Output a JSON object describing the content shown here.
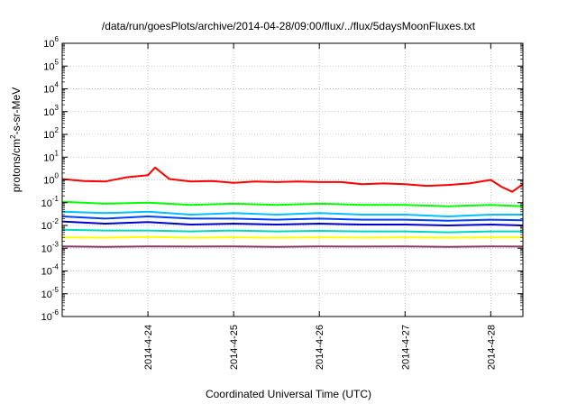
{
  "chart_data": {
    "type": "line",
    "title": "/data/run/goesPlots/archive/2014-04-28/09:00/flux/../flux/5daysMoonFluxes.txt",
    "xlabel": "Coordinated Universal Time (UTC)",
    "ylabel": "protons/cm^2-s-sr-MeV",
    "yscale": "log",
    "ylim": [
      1e-06,
      1000000.0
    ],
    "y_ticks": [
      {
        "mant": "10",
        "exp": "-6"
      },
      {
        "mant": "10",
        "exp": "-5"
      },
      {
        "mant": "10",
        "exp": "-4"
      },
      {
        "mant": "10",
        "exp": "-3"
      },
      {
        "mant": "10",
        "exp": "-2"
      },
      {
        "mant": "10",
        "exp": "-1"
      },
      {
        "mant": "10",
        "exp": "0"
      },
      {
        "mant": "10",
        "exp": "1"
      },
      {
        "mant": "10",
        "exp": "2"
      },
      {
        "mant": "10",
        "exp": "3"
      },
      {
        "mant": "10",
        "exp": "4"
      },
      {
        "mant": "10",
        "exp": "5"
      },
      {
        "mant": "10",
        "exp": "6"
      }
    ],
    "xlim": [
      "2014-04-23 00:00",
      "2014-04-28 09:00"
    ],
    "x_ticks": [
      "2014-4-24",
      "2014-4-25",
      "2014-4-26",
      "2014-4-27",
      "2014-4-28"
    ],
    "grid": true,
    "series": [
      {
        "color": "#ff0000",
        "x": [
          "2014-04-23 00:00",
          "2014-04-23 06:00",
          "2014-04-23 12:00",
          "2014-04-23 18:00",
          "2014-04-24 00:00",
          "2014-04-24 02:00",
          "2014-04-24 06:00",
          "2014-04-24 12:00",
          "2014-04-24 18:00",
          "2014-04-25 00:00",
          "2014-04-25 06:00",
          "2014-04-25 12:00",
          "2014-04-25 18:00",
          "2014-04-26 00:00",
          "2014-04-26 06:00",
          "2014-04-26 12:00",
          "2014-04-26 18:00",
          "2014-04-27 00:00",
          "2014-04-27 06:00",
          "2014-04-27 12:00",
          "2014-04-27 18:00",
          "2014-04-28 00:00",
          "2014-04-28 03:00",
          "2014-04-28 06:00",
          "2014-04-28 09:00"
        ],
        "y": [
          1.1,
          0.9,
          0.85,
          1.3,
          1.6,
          3.5,
          1.1,
          0.85,
          0.9,
          0.75,
          0.85,
          0.8,
          0.85,
          0.8,
          0.8,
          0.65,
          0.7,
          0.65,
          0.55,
          0.6,
          0.7,
          1.0,
          0.5,
          0.3,
          0.65
        ]
      },
      {
        "color": "#00ff00",
        "x": [
          "2014-04-23 00:00",
          "2014-04-23 12:00",
          "2014-04-24 00:00",
          "2014-04-24 12:00",
          "2014-04-25 00:00",
          "2014-04-25 12:00",
          "2014-04-26 00:00",
          "2014-04-26 12:00",
          "2014-04-27 00:00",
          "2014-04-27 12:00",
          "2014-04-28 00:00",
          "2014-04-28 09:00"
        ],
        "y": [
          0.11,
          0.09,
          0.1,
          0.08,
          0.09,
          0.08,
          0.09,
          0.08,
          0.08,
          0.07,
          0.08,
          0.07
        ]
      },
      {
        "color": "#00c0ff",
        "x": [
          "2014-04-23 00:00",
          "2014-04-23 12:00",
          "2014-04-24 00:00",
          "2014-04-24 12:00",
          "2014-04-25 00:00",
          "2014-04-25 12:00",
          "2014-04-26 00:00",
          "2014-04-26 12:00",
          "2014-04-27 00:00",
          "2014-04-27 12:00",
          "2014-04-28 00:00",
          "2014-04-28 09:00"
        ],
        "y": [
          0.04,
          0.035,
          0.04,
          0.03,
          0.035,
          0.03,
          0.035,
          0.03,
          0.03,
          0.025,
          0.03,
          0.03
        ]
      },
      {
        "color": "#0040ff",
        "x": [
          "2014-04-23 00:00",
          "2014-04-23 12:00",
          "2014-04-24 00:00",
          "2014-04-24 12:00",
          "2014-04-25 00:00",
          "2014-04-25 12:00",
          "2014-04-26 00:00",
          "2014-04-26 12:00",
          "2014-04-27 00:00",
          "2014-04-27 12:00",
          "2014-04-28 00:00",
          "2014-04-28 09:00"
        ],
        "y": [
          0.025,
          0.02,
          0.025,
          0.02,
          0.02,
          0.018,
          0.02,
          0.018,
          0.018,
          0.016,
          0.018,
          0.017
        ]
      },
      {
        "color": "#0000cc",
        "x": [
          "2014-04-23 00:00",
          "2014-04-23 12:00",
          "2014-04-24 00:00",
          "2014-04-24 12:00",
          "2014-04-25 00:00",
          "2014-04-25 12:00",
          "2014-04-26 00:00",
          "2014-04-26 12:00",
          "2014-04-27 00:00",
          "2014-04-27 12:00",
          "2014-04-28 00:00",
          "2014-04-28 09:00"
        ],
        "y": [
          0.015,
          0.012,
          0.014,
          0.011,
          0.012,
          0.011,
          0.012,
          0.011,
          0.011,
          0.01,
          0.011,
          0.01
        ]
      },
      {
        "color": "#00d8c0",
        "x": [
          "2014-04-23 00:00",
          "2014-04-23 12:00",
          "2014-04-24 00:00",
          "2014-04-24 12:00",
          "2014-04-25 00:00",
          "2014-04-25 12:00",
          "2014-04-26 00:00",
          "2014-04-26 12:00",
          "2014-04-27 00:00",
          "2014-04-27 12:00",
          "2014-04-28 00:00",
          "2014-04-28 09:00"
        ],
        "y": [
          0.0065,
          0.006,
          0.006,
          0.0055,
          0.006,
          0.0055,
          0.0058,
          0.0055,
          0.0055,
          0.005,
          0.0055,
          0.0055
        ]
      },
      {
        "color": "#ffff00",
        "x": [
          "2014-04-23 00:00",
          "2014-04-23 12:00",
          "2014-04-24 00:00",
          "2014-04-24 12:00",
          "2014-04-25 00:00",
          "2014-04-25 12:00",
          "2014-04-26 00:00",
          "2014-04-26 12:00",
          "2014-04-27 00:00",
          "2014-04-27 12:00",
          "2014-04-28 00:00",
          "2014-04-28 09:00"
        ],
        "y": [
          0.003,
          0.0029,
          0.0031,
          0.0029,
          0.003,
          0.0029,
          0.003,
          0.0029,
          0.003,
          0.0029,
          0.003,
          0.003
        ]
      },
      {
        "color": "#8b3a62",
        "x": [
          "2014-04-23 00:00",
          "2014-04-23 12:00",
          "2014-04-24 00:00",
          "2014-04-24 12:00",
          "2014-04-25 00:00",
          "2014-04-25 12:00",
          "2014-04-26 00:00",
          "2014-04-26 12:00",
          "2014-04-27 00:00",
          "2014-04-27 12:00",
          "2014-04-28 00:00",
          "2014-04-28 09:00"
        ],
        "y": [
          0.0012,
          0.00115,
          0.0012,
          0.00118,
          0.0012,
          0.00115,
          0.0012,
          0.00118,
          0.0012,
          0.00115,
          0.0012,
          0.00118
        ]
      }
    ]
  }
}
